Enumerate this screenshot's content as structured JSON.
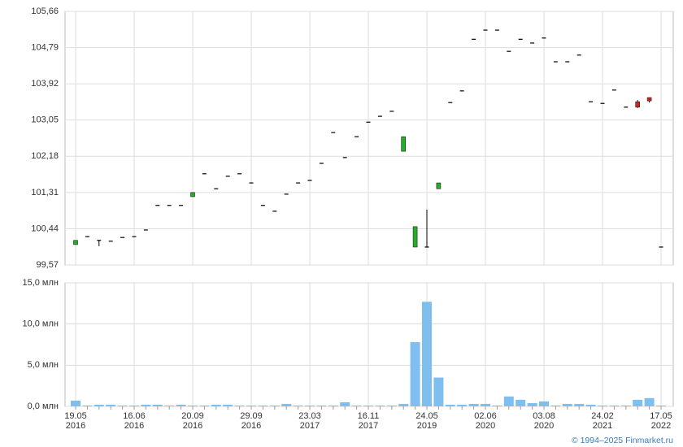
{
  "chart_data": [
    {
      "type": "candlestick",
      "up_color": "#22b022",
      "down_color": "#cc2222",
      "flat_color": "#000000",
      "open": [
        100.06,
        100.25,
        100.16,
        100.14,
        100.23,
        100.25,
        100.41,
        101.0,
        101.0,
        101.0,
        101.21,
        101.76,
        101.4,
        101.7,
        101.76,
        101.54,
        101.0,
        100.86,
        101.27,
        101.54,
        101.6,
        102.01,
        102.75,
        102.15,
        102.65,
        103.0,
        103.14,
        103.26,
        102.3,
        100.0,
        100.0,
        101.4,
        103.47,
        103.75,
        104.99,
        105.21,
        105.21,
        104.7,
        104.99,
        104.9,
        105.02,
        104.45,
        104.45,
        104.61,
        103.49,
        103.45,
        103.77,
        103.36,
        103.49,
        103.59,
        100.0
      ],
      "high": [
        100.16,
        100.25,
        100.16,
        100.14,
        100.23,
        100.25,
        100.41,
        101.0,
        101.0,
        101.0,
        101.31,
        101.76,
        101.4,
        101.7,
        101.76,
        101.54,
        101.0,
        100.86,
        101.27,
        101.54,
        101.6,
        102.01,
        102.75,
        102.15,
        102.65,
        103.0,
        103.14,
        103.26,
        102.65,
        100.49,
        100.9,
        101.54,
        103.47,
        103.75,
        104.99,
        105.21,
        105.21,
        104.7,
        104.99,
        104.9,
        105.02,
        104.45,
        104.45,
        104.61,
        103.49,
        103.45,
        103.77,
        103.36,
        103.53,
        103.59,
        100.0
      ],
      "low": [
        100.06,
        100.25,
        100.02,
        100.14,
        100.23,
        100.25,
        100.41,
        101.0,
        101.0,
        101.0,
        101.21,
        101.76,
        101.4,
        101.7,
        101.76,
        101.54,
        101.0,
        100.86,
        101.27,
        101.54,
        101.6,
        102.01,
        102.75,
        102.15,
        102.65,
        103.0,
        103.14,
        103.26,
        102.3,
        100.0,
        100.0,
        101.4,
        103.47,
        103.75,
        104.99,
        105.21,
        105.21,
        104.7,
        104.99,
        104.9,
        105.02,
        104.45,
        104.45,
        104.61,
        103.49,
        103.45,
        103.77,
        103.36,
        103.34,
        103.47,
        100.0
      ],
      "close": [
        100.16,
        100.25,
        100.16,
        100.14,
        100.23,
        100.25,
        100.41,
        101.0,
        101.0,
        101.0,
        101.31,
        101.76,
        101.4,
        101.7,
        101.76,
        101.54,
        101.0,
        100.86,
        101.27,
        101.54,
        101.6,
        102.01,
        102.75,
        102.15,
        102.65,
        103.0,
        103.14,
        103.26,
        102.65,
        100.49,
        100.0,
        101.54,
        103.47,
        103.75,
        104.99,
        105.21,
        105.21,
        104.7,
        104.99,
        104.9,
        105.02,
        104.45,
        104.45,
        104.61,
        103.49,
        103.45,
        103.77,
        103.36,
        103.36,
        103.51,
        100.0
      ],
      "ylim": [
        99.57,
        105.66
      ],
      "yticks": [
        {
          "value": 99.57,
          "label": "99,57"
        },
        {
          "value": 100.44,
          "label": "100,44"
        },
        {
          "value": 101.31,
          "label": "101,31"
        },
        {
          "value": 102.18,
          "label": "102,18"
        },
        {
          "value": 103.05,
          "label": "103,05"
        },
        {
          "value": 103.92,
          "label": "103,92"
        },
        {
          "value": 104.79,
          "label": "104,79"
        },
        {
          "value": 105.66,
          "label": "105,66"
        }
      ],
      "grid": true
    },
    {
      "type": "bar",
      "color": "#7fbfef",
      "categories": [
        "19.05 2016",
        null,
        null,
        null,
        null,
        "16.06 2016",
        null,
        null,
        null,
        null,
        "20.09 2016",
        null,
        null,
        null,
        null,
        "29.09 2016",
        null,
        null,
        null,
        null,
        "23.03 2017",
        null,
        null,
        null,
        null,
        "16.11 2017",
        null,
        null,
        null,
        null,
        "24.05 2019",
        null,
        null,
        null,
        null,
        "02.06 2020",
        null,
        null,
        null,
        null,
        "03.08 2020",
        null,
        null,
        null,
        null,
        "24.02 2021",
        null,
        null,
        null,
        null,
        "17.05 2022"
      ],
      "values": [
        0.7,
        0.1,
        0.2,
        0.2,
        0.1,
        0.1,
        0.2,
        0.2,
        0.1,
        0.2,
        0.1,
        0.1,
        0.2,
        0.2,
        0.1,
        0.1,
        0.1,
        0.1,
        0.3,
        0.1,
        0.1,
        0.1,
        0.1,
        0.5,
        0.1,
        0.1,
        0.1,
        0.1,
        0.3,
        7.8,
        12.7,
        3.5,
        0.2,
        0.2,
        0.3,
        0.3,
        0.1,
        1.2,
        0.8,
        0.4,
        0.6,
        0.1,
        0.3,
        0.3,
        0.2,
        0.1,
        0.1,
        0.1,
        0.8,
        1.0,
        0.1
      ],
      "ylim": [
        0,
        15
      ],
      "yticks": [
        {
          "value": 0,
          "label": "0,0 млн"
        },
        {
          "value": 5,
          "label": "5,0 млн"
        },
        {
          "value": 10,
          "label": "10,0 млн"
        },
        {
          "value": 15,
          "label": "15,0 млн"
        }
      ],
      "grid": true
    }
  ],
  "credit": "© 1994–2025 Finmarket.ru"
}
